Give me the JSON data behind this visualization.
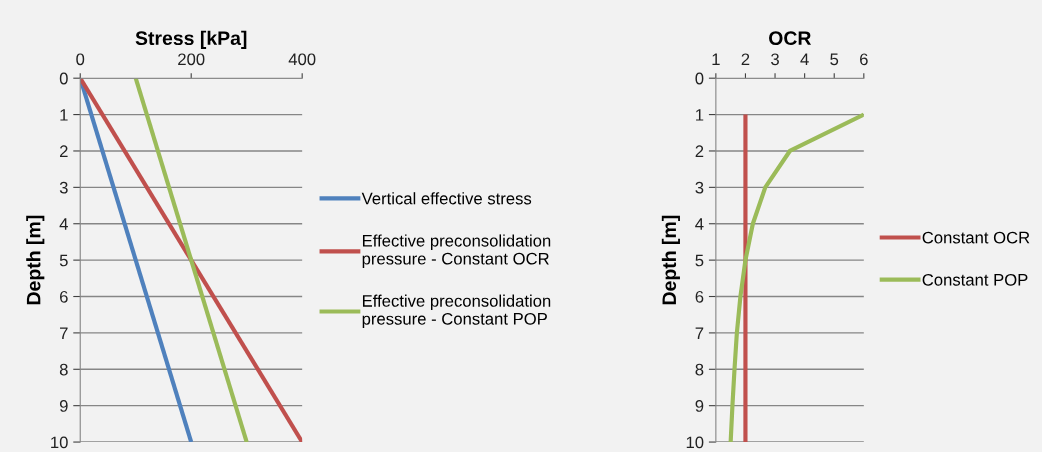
{
  "chart_data": [
    {
      "type": "line",
      "title": "Stress [kPa]",
      "ylabel": "Depth [m]",
      "xlim": [
        0,
        400
      ],
      "xticks": [
        0,
        200,
        400
      ],
      "ylim": [
        10,
        0
      ],
      "yticks": [
        0,
        1,
        2,
        3,
        4,
        5,
        6,
        7,
        8,
        9,
        10
      ],
      "grid": "y",
      "legend": "right",
      "series": [
        {
          "name": "Vertical effective stress",
          "color": "#4f81bd",
          "x": [
            0,
            200
          ],
          "values": [
            0,
            10
          ]
        },
        {
          "name": "Effective preconsolidation\npressure - Constant OCR",
          "color": "#c0504d",
          "x": [
            0,
            400
          ],
          "values": [
            0,
            10
          ]
        },
        {
          "name": "Effective preconsolidation\npressure - Constant POP",
          "color": "#9bbb59",
          "x": [
            100,
            300
          ],
          "values": [
            0,
            10
          ]
        }
      ]
    },
    {
      "type": "line",
      "title": "OCR",
      "ylabel": "Depth [m]",
      "xlim": [
        1,
        6
      ],
      "xticks": [
        1,
        2,
        3,
        4,
        5,
        6
      ],
      "ylim": [
        10,
        0
      ],
      "yticks": [
        0,
        1,
        2,
        3,
        4,
        5,
        6,
        7,
        8,
        9,
        10
      ],
      "grid": "y",
      "legend": "right",
      "series": [
        {
          "name": "Constant OCR",
          "color": "#c0504d",
          "x": [
            2,
            2,
            2,
            2,
            2,
            2,
            2,
            2,
            2,
            2
          ],
          "values": [
            1,
            2,
            3,
            4,
            5,
            6,
            7,
            8,
            9,
            10
          ]
        },
        {
          "name": "Constant POP",
          "color": "#9bbb59",
          "x": [
            6,
            3.5,
            2.67,
            2.25,
            2,
            1.83,
            1.71,
            1.63,
            1.56,
            1.5
          ],
          "values": [
            1,
            2,
            3,
            4,
            5,
            6,
            7,
            8,
            9,
            10
          ]
        }
      ]
    }
  ]
}
